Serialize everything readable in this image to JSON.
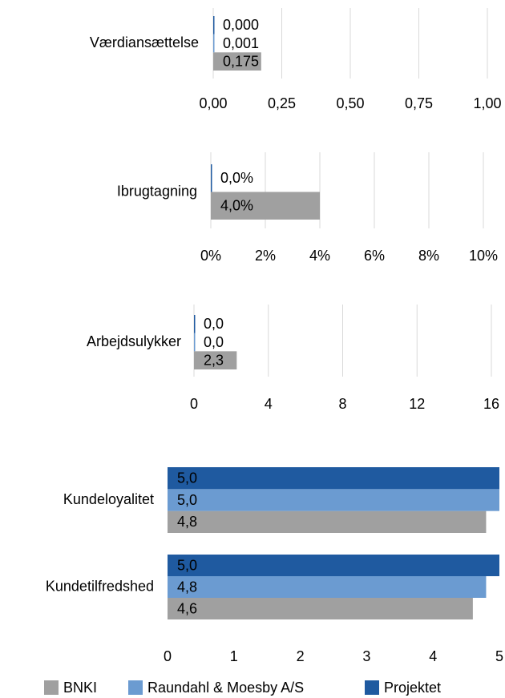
{
  "chart_data": [
    {
      "type": "bar",
      "categories": [
        "Værdiansættelse"
      ],
      "xlim": [
        0,
        1
      ],
      "xticks": [
        {
          "value": 0,
          "label": "0,00"
        },
        {
          "value": 0.25,
          "label": "0,25"
        },
        {
          "value": 0.5,
          "label": "0,50"
        },
        {
          "value": 0.75,
          "label": "0,75"
        },
        {
          "value": 1,
          "label": "1,00"
        }
      ],
      "grid": true,
      "series": [
        {
          "color": "#a0a0a0",
          "values": [
            0.175
          ],
          "value_labels": [
            "0,175"
          ]
        },
        {
          "color": "#6b9bd1",
          "values": [
            0.001
          ],
          "value_labels": [
            "0,001"
          ]
        },
        {
          "color": "#1f5aa0",
          "values": [
            0
          ],
          "value_labels": [
            "0,000"
          ]
        }
      ]
    },
    {
      "type": "bar",
      "categories": [
        "Ibrugtagning"
      ],
      "xlim": [
        0,
        10
      ],
      "xticks": [
        {
          "value": 0,
          "label": "0%"
        },
        {
          "value": 2,
          "label": "2%"
        },
        {
          "value": 4,
          "label": "4%"
        },
        {
          "value": 6,
          "label": "6%"
        },
        {
          "value": 8,
          "label": "8%"
        },
        {
          "value": 10,
          "label": "10%"
        }
      ],
      "grid": true,
      "series": [
        {
          "color": "#a0a0a0",
          "values": [
            4
          ],
          "value_labels": [
            "4,0%"
          ]
        },
        {
          "color": "#1f5aa0",
          "values": [
            0
          ],
          "value_labels": [
            "0,0%"
          ]
        }
      ]
    },
    {
      "type": "bar",
      "categories": [
        "Arbejdsulykker"
      ],
      "xlim": [
        0,
        16
      ],
      "xticks": [
        0,
        4,
        8,
        12,
        16
      ],
      "grid": true,
      "series": [
        {
          "color": "#a0a0a0",
          "values": [
            2.3
          ],
          "value_labels": [
            "2,3"
          ]
        },
        {
          "color": "#6b9bd1",
          "values": [
            0
          ],
          "value_labels": [
            "0,0"
          ]
        },
        {
          "color": "#1f5aa0",
          "values": [
            0
          ],
          "value_labels": [
            "0,0"
          ]
        }
      ]
    },
    {
      "type": "bar",
      "categories": [
        "Kundeloyalitet",
        "Kundetilfredshed"
      ],
      "xlim": [
        0,
        5
      ],
      "xticks": [
        0,
        1,
        2,
        3,
        4,
        5
      ],
      "grid": false,
      "legend": "bottom",
      "series": [
        {
          "name": "BNKI",
          "color": "#a0a0a0",
          "values": [
            4.8,
            4.6
          ],
          "value_labels": [
            "4,8",
            "4,6"
          ]
        },
        {
          "name": "Raundahl & Moesby A/S",
          "color": "#6b9bd1",
          "values": [
            5.0,
            4.8
          ],
          "value_labels": [
            "5,0",
            "4,8"
          ]
        },
        {
          "name": "Projektet",
          "color": "#1f5aa0",
          "values": [
            5.0,
            5.0
          ],
          "value_labels": [
            "5,0",
            "5,0"
          ]
        }
      ]
    }
  ]
}
